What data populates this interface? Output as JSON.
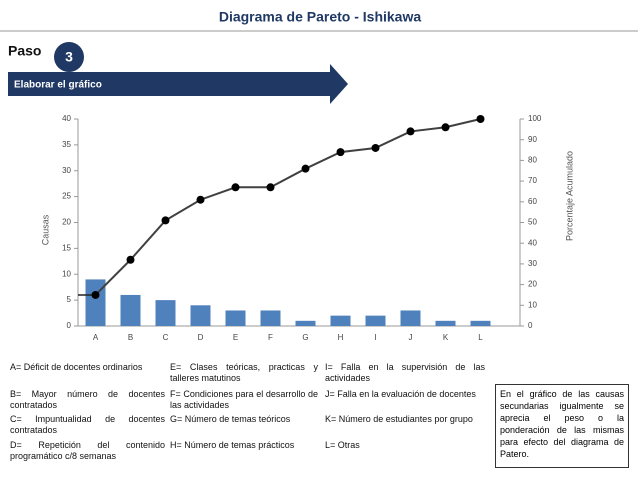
{
  "header": {
    "title": "Diagrama de Pareto - Ishikawa",
    "step_label": "Paso",
    "step_number": "3",
    "step_title": "Elaborar el  gráfico"
  },
  "chart_data": {
    "type": "pareto",
    "ylabel": "Causas",
    "y2label": "Porcentaje Acumulado",
    "categories": [
      "A",
      "B",
      "C",
      "D",
      "E",
      "F",
      "G",
      "H",
      "I",
      "J",
      "K",
      "L"
    ],
    "series": [
      {
        "color": "#4f81bd",
        "values": [
          9,
          6,
          5,
          4,
          3,
          3,
          1,
          2,
          2,
          3,
          1,
          1
        ]
      },
      {
        "color": "#404040",
        "axis": "y2",
        "values": [
          15,
          32,
          51,
          61,
          67,
          67,
          76,
          84,
          86,
          94,
          96,
          100
        ]
      }
    ],
    "ylim": [
      0,
      40
    ],
    "yticks": [
      0,
      5,
      10,
      15,
      20,
      25,
      30,
      35,
      40
    ],
    "y2lim": [
      0,
      100
    ],
    "y2ticks": [
      0,
      10,
      20,
      30,
      40,
      50,
      60,
      70,
      80,
      90,
      100
    ],
    "grid": false
  },
  "notes": [
    [
      "A= Déficit de docentes ordinarios",
      "E= Clases teóricas, practicas y talleres matutinos",
      "I= Falla en la supervisión de las actividades"
    ],
    [
      "B= Mayor número de docentes contratados",
      "F= Condiciones para el desarrollo de las actividades",
      "J= Falla en la evaluación de docentes"
    ],
    [
      "C= Impuntualidad de docentes contratados",
      "G= Número de temas teóricos",
      "K= Número de estudiantes por grupo"
    ],
    [
      "D= Repetición del contenido programático c/8 semanas",
      "H= Número de temas prácticos",
      "L= Otras"
    ]
  ],
  "comment": "En el gráfico de las causas secundarias igualmente se aprecia el peso o la ponderación de las mismas para efecto del diagrama de Patero."
}
